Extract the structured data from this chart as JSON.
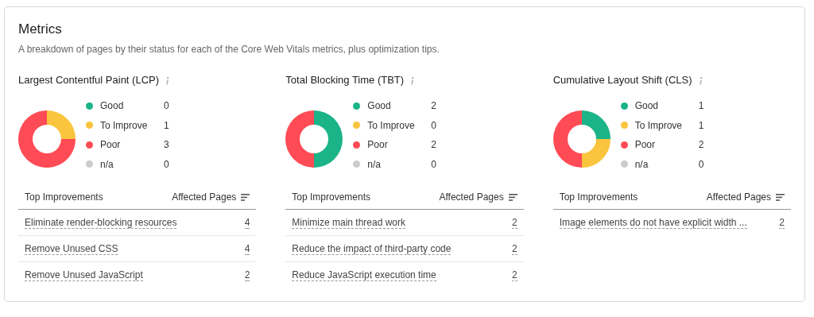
{
  "chart_data": [
    {
      "type": "other",
      "title": "Metrics",
      "subtitle": "A breakdown of pages by their status for each of the Core Web Vitals metrics, plus optimization tips."
    },
    {
      "type": "donut",
      "title": "Largest Contentful Paint (LCP)",
      "categories": [
        "Good",
        "To Improve",
        "Poor",
        "n/a"
      ],
      "values": [
        0,
        1,
        3,
        0
      ],
      "value_labels": [
        "0",
        "1",
        "3",
        "0"
      ],
      "colors": [
        "#1bb388",
        "#fbc43d",
        "#ff4b55",
        "#cccccc"
      ],
      "legend": "right",
      "annotations": [
        "Top Improvements",
        "Affected Pages",
        "Eliminate render-blocking resources",
        "4",
        "Remove Unused CSS",
        "4",
        "Remove Unused JavaScript",
        "2"
      ]
    },
    {
      "type": "donut",
      "title": "Total Blocking Time (TBT)",
      "categories": [
        "Good",
        "To Improve",
        "Poor",
        "n/a"
      ],
      "values": [
        2,
        0,
        2,
        0
      ],
      "value_labels": [
        "2",
        "0",
        "2",
        "0"
      ],
      "colors": [
        "#1bb388",
        "#fbc43d",
        "#ff4b55",
        "#cccccc"
      ],
      "legend": "right",
      "annotations": [
        "Top Improvements",
        "Affected Pages",
        "Minimize main thread work",
        "2",
        "Reduce the impact of third-party code",
        "2",
        "Reduce JavaScript execution time",
        "2"
      ]
    },
    {
      "type": "donut",
      "title": "Cumulative Layout Shift (CLS)",
      "categories": [
        "Good",
        "To Improve",
        "Poor",
        "n/a"
      ],
      "values": [
        1,
        1,
        2,
        0
      ],
      "value_labels": [
        "1",
        "1",
        "2",
        "0"
      ],
      "colors": [
        "#1bb388",
        "#fbc43d",
        "#ff4b55",
        "#cccccc"
      ],
      "legend": "right",
      "annotations": [
        "Top Improvements",
        "Affected Pages",
        "Image elements do not have explicit width ...",
        "2"
      ]
    }
  ]
}
